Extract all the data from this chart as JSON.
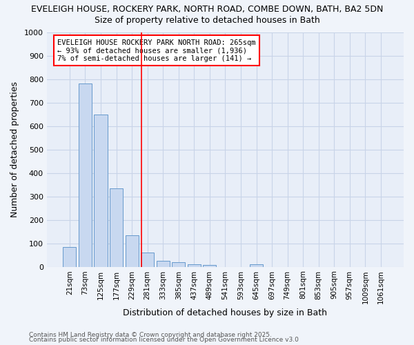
{
  "title1": "EVELEIGH HOUSE, ROCKERY PARK, NORTH ROAD, COMBE DOWN, BATH, BA2 5DN",
  "title2": "Size of property relative to detached houses in Bath",
  "xlabel": "Distribution of detached houses by size in Bath",
  "ylabel": "Number of detached properties",
  "categories": [
    "21sqm",
    "73sqm",
    "125sqm",
    "177sqm",
    "229sqm",
    "281sqm",
    "333sqm",
    "385sqm",
    "437sqm",
    "489sqm",
    "541sqm",
    "593sqm",
    "645sqm",
    "697sqm",
    "749sqm",
    "801sqm",
    "853sqm",
    "905sqm",
    "957sqm",
    "1009sqm",
    "1061sqm"
  ],
  "values": [
    85,
    780,
    650,
    335,
    135,
    60,
    25,
    18,
    10,
    8,
    0,
    0,
    10,
    0,
    0,
    0,
    0,
    0,
    0,
    0,
    0
  ],
  "bar_color": "#c8d8f0",
  "bar_edge_color": "#6699cc",
  "red_line_x": 4.62,
  "annotation_line1": "EVELEIGH HOUSE ROCKERY PARK NORTH ROAD: 265sqm",
  "annotation_line2": "← 93% of detached houses are smaller (1,936)",
  "annotation_line3": "7% of semi-detached houses are larger (141) →",
  "ylim": [
    0,
    1000
  ],
  "yticks": [
    0,
    100,
    200,
    300,
    400,
    500,
    600,
    700,
    800,
    900,
    1000
  ],
  "grid_color": "#c8d4e8",
  "plot_bg_color": "#e8eef8",
  "fig_bg_color": "#f0f4fa",
  "footer1": "Contains HM Land Registry data © Crown copyright and database right 2025.",
  "footer2": "Contains public sector information licensed under the Open Government Licence v3.0"
}
